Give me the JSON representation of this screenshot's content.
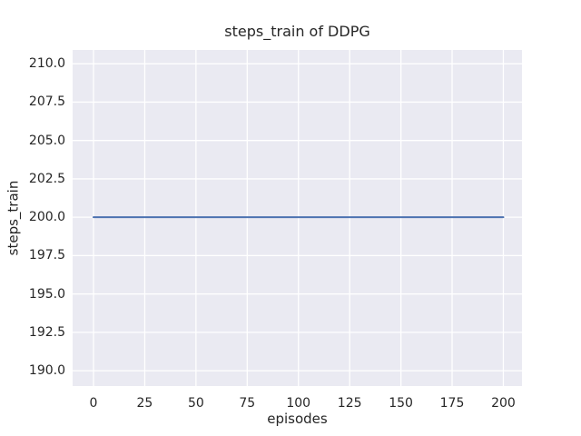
{
  "chart_data": {
    "type": "line",
    "title": "steps_train of DDPG",
    "xlabel": "episodes",
    "ylabel": "steps_train",
    "xlim": [
      -10.2,
      209.1
    ],
    "ylim": [
      189.0,
      210.9
    ],
    "grid": true,
    "legend_position": "none",
    "xticks": {
      "values": [
        0,
        25,
        50,
        75,
        100,
        125,
        150,
        175,
        200
      ],
      "labels": [
        "0",
        "25",
        "50",
        "75",
        "100",
        "125",
        "150",
        "175",
        "200"
      ]
    },
    "yticks": {
      "values": [
        190.0,
        192.5,
        195.0,
        197.5,
        200.0,
        202.5,
        205.0,
        207.5,
        210.0
      ],
      "labels": [
        "190.0",
        "192.5",
        "195.0",
        "197.5",
        "200.0",
        "202.5",
        "205.0",
        "207.5",
        "210.0"
      ]
    },
    "series": [
      {
        "name": "steps_train",
        "color": "#4C72B0",
        "x": [
          0,
          200
        ],
        "y": [
          200,
          200
        ],
        "note": "constant line: steps_train = 200 for every episode from 0 to 200"
      }
    ],
    "colors": {
      "figure_background": "#FFFFFF",
      "plot_background": "#EAEAF2",
      "grid": "#FFFFFF",
      "text": "#262626",
      "line": "#4C72B0"
    }
  }
}
